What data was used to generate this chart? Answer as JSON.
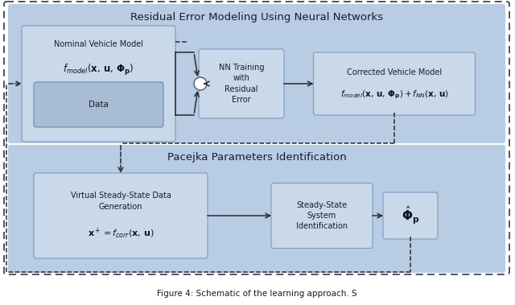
{
  "fig_width": 6.4,
  "fig_height": 3.79,
  "dpi": 100,
  "bg_color": "#ffffff",
  "panel_color": "#b8cce4",
  "node_color": "#c9d9ea",
  "node_color_dark": "#a8bdd4",
  "top_title": "Residual Error Modeling Using Neural Networks",
  "bottom_title": "Pacejka Parameters Identification",
  "caption": "Figure 4: Schematic of the learning approach. S"
}
